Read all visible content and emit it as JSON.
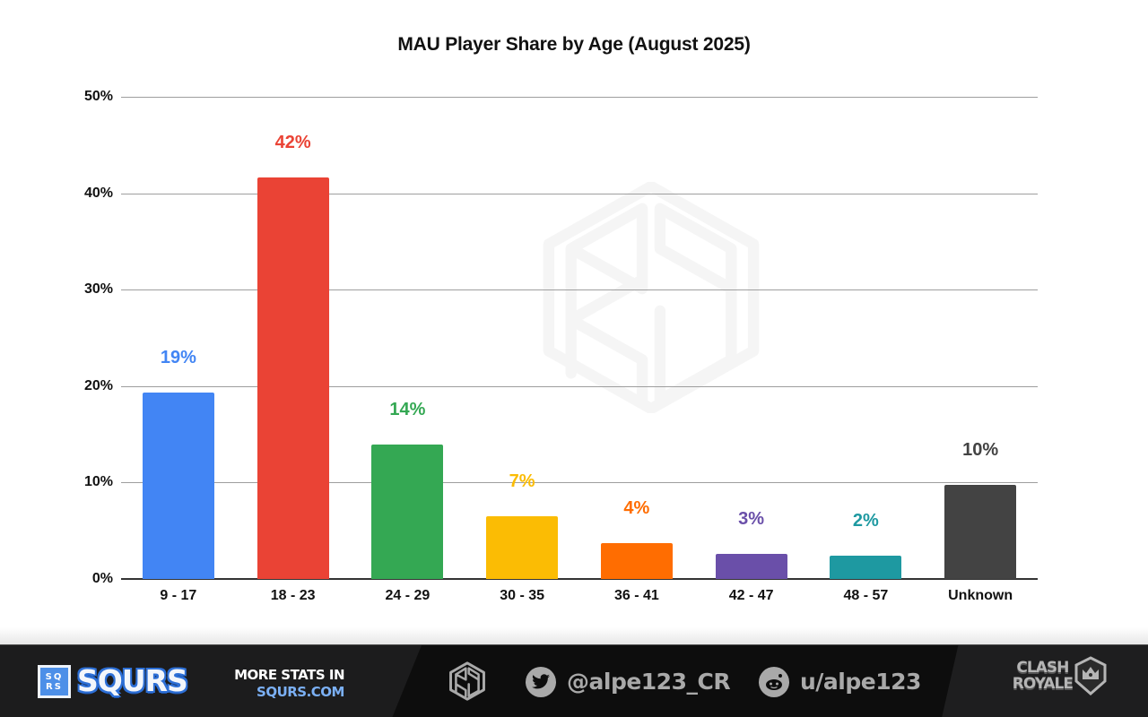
{
  "chart_data": {
    "type": "bar",
    "title": "MAU Player Share by Age (August 2025)",
    "xlabel": "",
    "ylabel": "",
    "ylim": [
      0,
      50
    ],
    "yticks": [
      "0%",
      "10%",
      "20%",
      "30%",
      "40%",
      "50%"
    ],
    "grid": true,
    "legend": "none",
    "categories": [
      "9 - 17",
      "18 - 23",
      "24 - 29",
      "30 - 35",
      "36 - 41",
      "42 - 47",
      "48 - 57",
      "Unknown"
    ],
    "values": [
      19.3,
      41.6,
      13.9,
      6.5,
      3.7,
      2.6,
      2.4,
      9.8
    ],
    "data_labels": [
      "19%",
      "42%",
      "14%",
      "7%",
      "4%",
      "3%",
      "2%",
      "10%"
    ],
    "colors": [
      "#4285f4",
      "#ea4335",
      "#34a853",
      "#fbbc04",
      "#ff6d01",
      "#6a4fa9",
      "#1e99a1",
      "#434343"
    ]
  },
  "footer": {
    "brand_box": [
      "SQ",
      "RS"
    ],
    "brand_name": "SQURS",
    "more_stats_line1": "MORE STATS IN",
    "more_stats_line2": "SQURS.COM",
    "twitter_handle": "@alpe123_CR",
    "reddit_handle": "u/alpe123",
    "game_logo_line1": "CLASH",
    "game_logo_line2": "ROYALE"
  },
  "icons": {
    "watermark": "rs-hexagon-logo",
    "twitter": "twitter-bird",
    "reddit": "reddit-alien"
  }
}
